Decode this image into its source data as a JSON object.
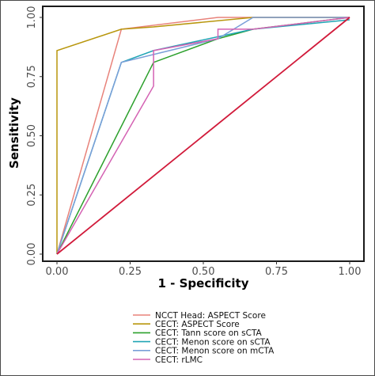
{
  "chart_data": {
    "type": "line",
    "title": "",
    "xlabel": "1 - Specificity",
    "ylabel": "Sensitivity",
    "xlim": [
      0,
      1
    ],
    "ylim": [
      0,
      1
    ],
    "x_ticks": [
      "0.00",
      "0.25",
      "0.50",
      "0.75",
      "1.00"
    ],
    "y_ticks": [
      "0.00",
      "0.25",
      "0.50",
      "0.75",
      "1.00"
    ],
    "legend_position": "bottom",
    "grid": false,
    "series": [
      {
        "name": "NCCT Head: ASPECT Score",
        "color": "#e8827a",
        "x": [
          0,
          0.22,
          0.55,
          0.67,
          1.0
        ],
        "y": [
          0,
          0.95,
          1.0,
          1.0,
          1.0
        ]
      },
      {
        "name": "CECT: ASPECT Score",
        "color": "#b8960c",
        "x": [
          0,
          0,
          0.22,
          0.33,
          0.67,
          1.0
        ],
        "y": [
          0,
          0.86,
          0.95,
          0.96,
          1.0,
          1.0
        ]
      },
      {
        "name": "CECT: Tann score on sCTA",
        "color": "#2ca02c",
        "x": [
          0,
          0.33,
          0.55,
          0.67,
          1.0
        ],
        "y": [
          0,
          0.81,
          0.91,
          0.95,
          1.0
        ]
      },
      {
        "name": "CECT: Menon score on sCTA",
        "color": "#20a5b5",
        "x": [
          0,
          0.22,
          0.33,
          0.67,
          1.0
        ],
        "y": [
          0,
          0.81,
          0.86,
          0.95,
          0.99
        ]
      },
      {
        "name": "CECT: Menon score on mCTA",
        "color": "#7a9fd8",
        "x": [
          0,
          0.22,
          0.55,
          0.67,
          0.9,
          1.0
        ],
        "y": [
          0,
          0.81,
          0.91,
          1.0,
          1.0,
          1.0
        ]
      },
      {
        "name": "CECT: rLMC",
        "color": "#d462b3",
        "x": [
          0,
          0.33,
          0.33,
          0.55,
          0.55,
          0.67,
          1.0
        ],
        "y": [
          0,
          0.71,
          0.86,
          0.91,
          0.95,
          0.95,
          1.0
        ]
      },
      {
        "name": "",
        "color": "#d11a3a",
        "x": [
          0,
          1.0
        ],
        "y": [
          0,
          1.0
        ]
      }
    ]
  }
}
